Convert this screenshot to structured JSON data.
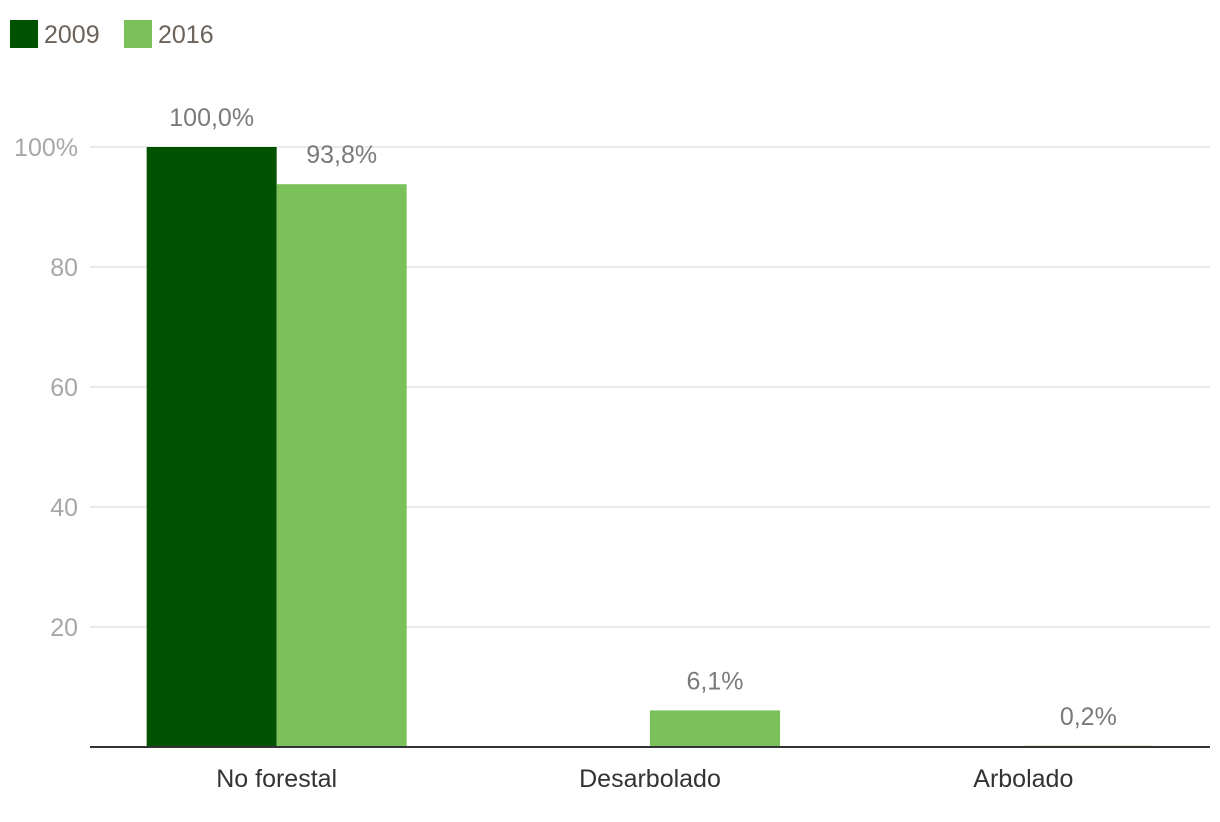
{
  "chart_data": {
    "type": "bar",
    "categories": [
      "No forestal",
      "Desarbolado",
      "Arbolado"
    ],
    "series": [
      {
        "name": "2009",
        "color": "#005100",
        "values": [
          100.0,
          null,
          null
        ],
        "labels": [
          "100,0%",
          "",
          ""
        ]
      },
      {
        "name": "2016",
        "color": "#7bc15a",
        "values": [
          93.8,
          6.1,
          0.2
        ],
        "labels": [
          "93,8%",
          "6,1%",
          "0,2%"
        ]
      }
    ],
    "yticks": [
      20,
      40,
      60,
      80,
      100
    ],
    "ytick_labels": [
      "20",
      "40",
      "60",
      "80",
      "100%"
    ],
    "ylim": [
      0,
      100
    ],
    "grid": true,
    "legend": "top-left",
    "title": "",
    "xlabel": "",
    "ylabel": ""
  }
}
